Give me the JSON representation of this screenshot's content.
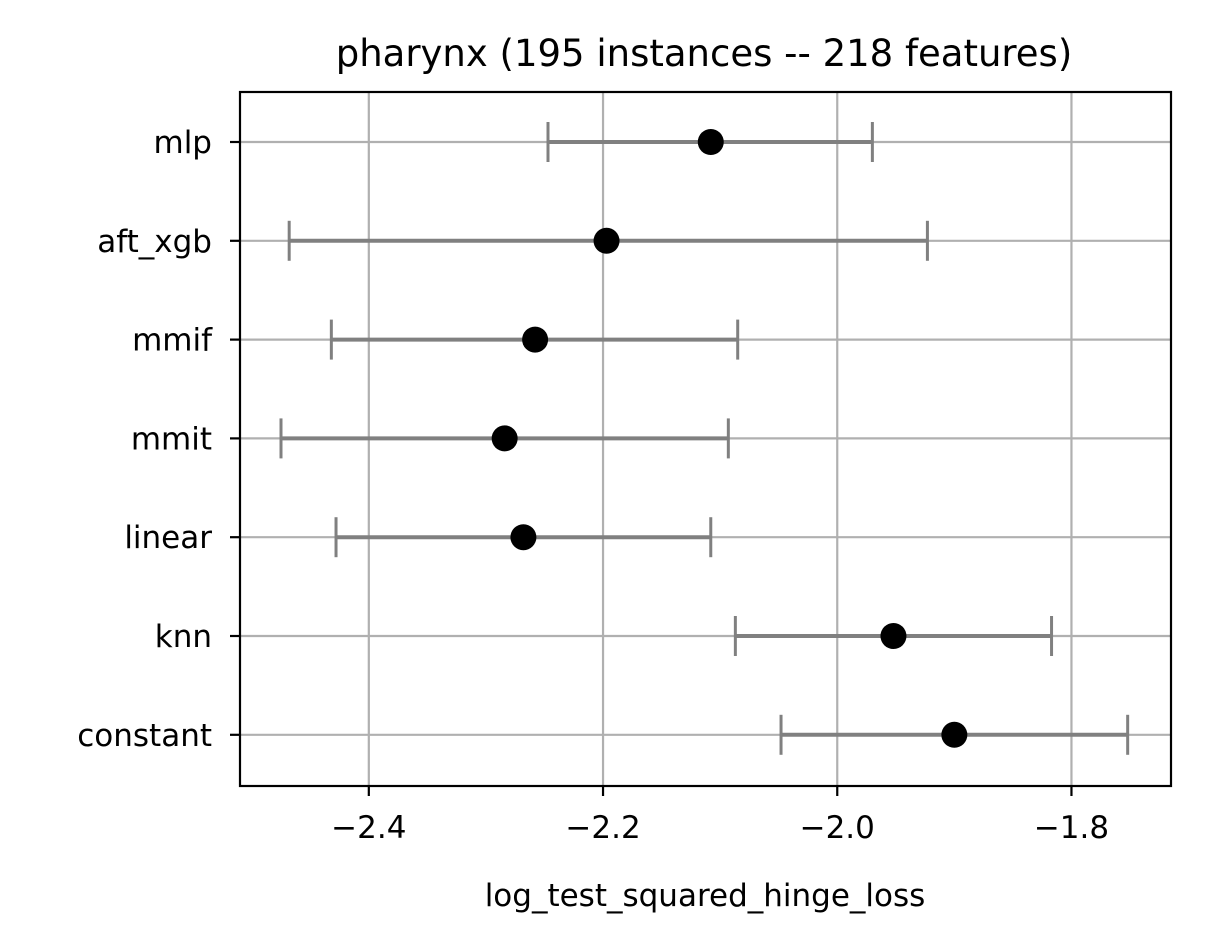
{
  "chart_data": {
    "type": "errorbar",
    "title": "pharynx (195 instances -- 218 features)",
    "xlabel": "log_test_squared_hinge_loss",
    "ylabel": "",
    "xlim": [
      -2.51,
      -1.715
    ],
    "xticks": [
      -2.4,
      -2.2,
      -2.0,
      -1.8
    ],
    "xtick_labels": [
      "−2.4",
      "−2.2",
      "−2.0",
      "−1.8"
    ],
    "grid": true,
    "colors": {
      "point": "#000000",
      "errorbar": "#808080",
      "grid": "#b0b0b0"
    },
    "categories": [
      "mlp",
      "aft_xgb",
      "mmif",
      "mmit",
      "linear",
      "knn",
      "constant"
    ],
    "points": [
      {
        "label": "mlp",
        "mean": -2.108,
        "lo": -2.247,
        "hi": -1.97
      },
      {
        "label": "aft_xgb",
        "mean": -2.197,
        "lo": -2.468,
        "hi": -1.923
      },
      {
        "label": "mmif",
        "mean": -2.258,
        "lo": -2.432,
        "hi": -2.085
      },
      {
        "label": "mmit",
        "mean": -2.284,
        "lo": -2.475,
        "hi": -2.093
      },
      {
        "label": "linear",
        "mean": -2.268,
        "lo": -2.428,
        "hi": -2.108
      },
      {
        "label": "knn",
        "mean": -1.952,
        "lo": -2.087,
        "hi": -1.817
      },
      {
        "label": "constant",
        "mean": -1.9,
        "lo": -2.048,
        "hi": -1.752
      }
    ]
  }
}
